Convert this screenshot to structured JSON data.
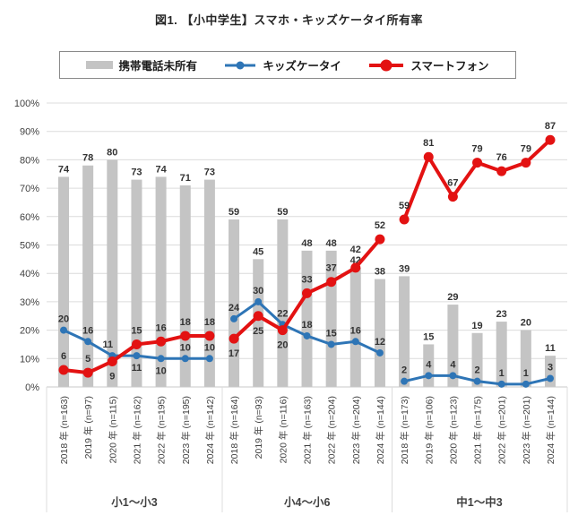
{
  "title": "図1. 【小中学生】スマホ・キッズケータイ所有率",
  "colors": {
    "bar": "#c4c4c4",
    "kids_line": "#2e75b6",
    "smartphone_line": "#e31212",
    "grid": "#dcdcdc",
    "axis_text": "#404040",
    "data_label": "#333333",
    "legend_border": "#8a8a8a"
  },
  "legend": {
    "items": [
      {
        "label": "携帯電話未所有",
        "type": "bar",
        "color": "#c4c4c4"
      },
      {
        "label": "キッズケータイ",
        "type": "line",
        "color": "#2e75b6"
      },
      {
        "label": "スマートフォン",
        "type": "line",
        "color": "#e31212"
      }
    ]
  },
  "y_axis": {
    "min": 0,
    "max": 100,
    "step": 10,
    "unit": "%",
    "tick_labels": [
      "0%",
      "10%",
      "20%",
      "30%",
      "40%",
      "50%",
      "60%",
      "70%",
      "80%",
      "90%",
      "100%"
    ]
  },
  "chart_data": {
    "type": "combo: bar + line",
    "title": "図1. 【小中学生】スマホ・キッズケータイ所有率",
    "ylim": [
      0,
      100
    ],
    "y_tick_format": "percent",
    "grid": "horizontal",
    "legend_position": "top",
    "groups": [
      {
        "label": "小1〜小3",
        "categories": [
          "2018 年 (n=163)",
          "2019 年 (n=97)",
          "2020 年 (n=115)",
          "2021 年 (n=162)",
          "2022 年 (n=195)",
          "2023 年 (n=195)",
          "2024 年 (n=142)"
        ]
      },
      {
        "label": "小4〜小6",
        "categories": [
          "2018 年 (n=164)",
          "2019 年 (n=93)",
          "2020 年 (n=116)",
          "2021 年 (n=163)",
          "2022 年 (n=204)",
          "2023 年 (n=204)",
          "2024 年 (n=144)"
        ]
      },
      {
        "label": "中1〜中3",
        "categories": [
          "2018 年 (n=173)",
          "2019 年 (n=106)",
          "2020 年 (n=123)",
          "2021 年 (n=175)",
          "2022 年 (n=201)",
          "2023 年 (n=201)",
          "2024 年 (n=144)"
        ]
      }
    ],
    "series": [
      {
        "name": "携帯電話未所有",
        "type": "bar",
        "color": "#c4c4c4",
        "values": [
          [
            74,
            78,
            80,
            73,
            74,
            71,
            73
          ],
          [
            59,
            45,
            59,
            48,
            48,
            42,
            38
          ],
          [
            39,
            15,
            29,
            19,
            23,
            20,
            11
          ]
        ]
      },
      {
        "name": "キッズケータイ",
        "type": "line",
        "color": "#2e75b6",
        "values": [
          [
            20,
            16,
            11,
            11,
            10,
            10,
            10
          ],
          [
            24,
            30,
            22,
            18,
            15,
            16,
            12
          ],
          [
            2,
            4,
            4,
            2,
            1,
            1,
            3
          ]
        ]
      },
      {
        "name": "スマートフォン",
        "type": "line",
        "color": "#e31212",
        "values": [
          [
            6,
            5,
            9,
            15,
            16,
            18,
            18
          ],
          [
            17,
            25,
            20,
            33,
            37,
            42,
            52
          ],
          [
            59,
            81,
            67,
            79,
            76,
            79,
            87
          ]
        ]
      }
    ]
  }
}
